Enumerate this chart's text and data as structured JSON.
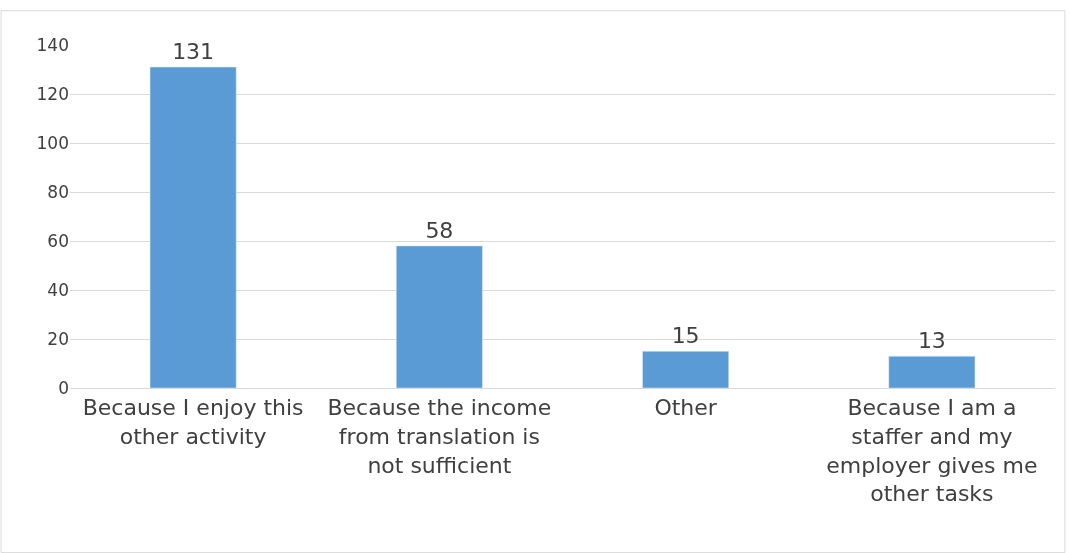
{
  "chart_data": {
    "type": "bar",
    "categories": [
      "Because I enjoy this other activity",
      "Because the income from translation is not sufficient",
      "Other",
      "Because I am a staffer and my employer gives me other tasks"
    ],
    "values": [
      131,
      58,
      15,
      13
    ],
    "color": "#5b9bd5",
    "ylim": [
      0,
      140
    ],
    "yticks": [
      0,
      20,
      40,
      60,
      80,
      100,
      120,
      140
    ],
    "grid": "y",
    "data_labels": true
  }
}
